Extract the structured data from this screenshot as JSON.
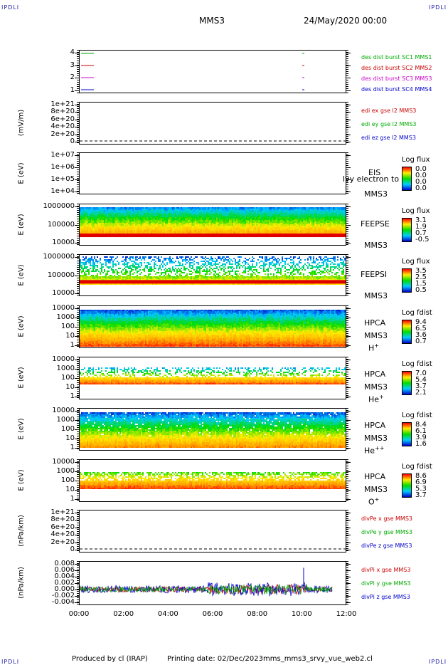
{
  "header": {
    "corner_label": "IPDLI",
    "spacecraft": "MMS3",
    "date_time": "24/May/2020 00:00"
  },
  "footer": {
    "produced_by": "Produced by cl (IRAP)",
    "printing_date": "Printing date: 02/Dec/2023",
    "script": "mms_mms3_srvy_vue_web2.cl"
  },
  "x_axis": {
    "ticks": [
      "00:00",
      "02:00",
      "04:00",
      "06:00",
      "08:00",
      "10:00",
      "12:00"
    ]
  },
  "chart_data": [
    {
      "type": "line",
      "panel": "burst",
      "ylabel": "",
      "yticks": [
        "4",
        "3",
        "2",
        "1"
      ],
      "series": [
        {
          "name": "des dist burst SC1 MMS1",
          "color": "#00aa00"
        },
        {
          "name": "des dist burst SC2 MMS2",
          "color": "#cc0000"
        },
        {
          "name": "des dist burst SC3 MMS3",
          "color": "#cc00cc"
        },
        {
          "name": "des dist burst SC4 MMS4",
          "color": "#0000cc"
        }
      ]
    },
    {
      "type": "line",
      "panel": "edi",
      "ylabel": "(mV/m)",
      "yticks": [
        "1e+21",
        "8e+20",
        "6e+20",
        "4e+20",
        "2e+20",
        "0"
      ],
      "series": [
        {
          "name": "edi ex gse l2 MMS3",
          "color": "#cc0000"
        },
        {
          "name": "edi ey gse l2 MMS3",
          "color": "#00aa00"
        },
        {
          "name": "edi ez gse l2 MMS3",
          "color": "#0000cc"
        }
      ]
    },
    {
      "type": "heatmap",
      "panel": "eis",
      "ylabel": "E (eV)",
      "yticks": [
        "1e+07",
        "1e+06",
        "1e+05",
        "1e+04"
      ],
      "instrument": "EIS",
      "overlay_text": "lvy electron to",
      "sc": "MMS3",
      "colorbar": {
        "title": "Log flux",
        "ticks": [
          "0.0",
          "0.0",
          "0.0",
          "0.0"
        ]
      }
    },
    {
      "type": "heatmap",
      "panel": "feepse",
      "ylabel": "E (eV)",
      "yticks": [
        "1000000",
        "100000",
        "10000"
      ],
      "instrument": "FEEPSE",
      "sc": "MMS3",
      "colorbar": {
        "title": "Log flux",
        "ticks": [
          "3.1",
          "1.9",
          "0.7",
          "-0.5"
        ]
      }
    },
    {
      "type": "heatmap",
      "panel": "feepsi",
      "ylabel": "E (eV)",
      "yticks": [
        "1000000",
        "100000",
        "10000"
      ],
      "instrument": "FEEPSI",
      "sc": "MMS3",
      "colorbar": {
        "title": "Log flux",
        "ticks": [
          "3.5",
          "2.5",
          "1.5",
          "0.5"
        ]
      }
    },
    {
      "type": "heatmap",
      "panel": "hpca_h",
      "ylabel": "E (eV)",
      "yticks": [
        "10000",
        "1000",
        "100",
        "10",
        "1"
      ],
      "instrument": "HPCA",
      "sc": "MMS3",
      "species": "H",
      "charge": "+",
      "colorbar": {
        "title": "Log fdist",
        "ticks": [
          "9.4",
          "6.5",
          "3.6",
          "0.7"
        ]
      }
    },
    {
      "type": "heatmap",
      "panel": "hpca_he",
      "ylabel": "E (eV)",
      "yticks": [
        "10000",
        "1000",
        "100",
        "10",
        "1"
      ],
      "instrument": "HPCA",
      "sc": "MMS3",
      "species": "He",
      "charge": "+",
      "colorbar": {
        "title": "Log fdist",
        "ticks": [
          "7.0",
          "5.4",
          "3.7",
          "2.1"
        ]
      }
    },
    {
      "type": "heatmap",
      "panel": "hpca_hepp",
      "ylabel": "E (eV)",
      "yticks": [
        "10000",
        "1000",
        "100",
        "10",
        "1"
      ],
      "instrument": "HPCA",
      "sc": "MMS3",
      "species": "He",
      "charge": "++",
      "colorbar": {
        "title": "Log fdist",
        "ticks": [
          "8.4",
          "6.1",
          "3.9",
          "1.6"
        ]
      }
    },
    {
      "type": "heatmap",
      "panel": "hpca_o",
      "ylabel": "E (eV)",
      "yticks": [
        "10000",
        "1000",
        "100",
        "10",
        "1"
      ],
      "instrument": "HPCA",
      "sc": "MMS3",
      "species": "O",
      "charge": "+",
      "colorbar": {
        "title": "Log fdist",
        "ticks": [
          "8.6",
          "6.9",
          "5.3",
          "3.7"
        ]
      }
    },
    {
      "type": "line",
      "panel": "divpe",
      "ylabel": "(nPa/km)",
      "yticks": [
        "1e+21",
        "8e+20",
        "6e+20",
        "4e+20",
        "2e+20",
        "0"
      ],
      "series": [
        {
          "name": "divPe x gse MMS3",
          "color": "#cc0000"
        },
        {
          "name": "divPe y gse MMS3",
          "color": "#00aa00"
        },
        {
          "name": "divPe z gse MMS3",
          "color": "#0000cc"
        }
      ]
    },
    {
      "type": "line",
      "panel": "divpi",
      "ylabel": "(nPa/km)",
      "yticks": [
        "0.008",
        "0.006",
        "0.004",
        "0.002",
        "0.000",
        "-0.002",
        "-0.004"
      ],
      "ylim": [
        -0.004,
        0.008
      ],
      "series": [
        {
          "name": "divPi x gse MMS3",
          "color": "#cc0000"
        },
        {
          "name": "divPi y gse MMS3",
          "color": "#00aa00"
        },
        {
          "name": "divPi z gse MMS3",
          "color": "#0000cc"
        }
      ]
    }
  ]
}
